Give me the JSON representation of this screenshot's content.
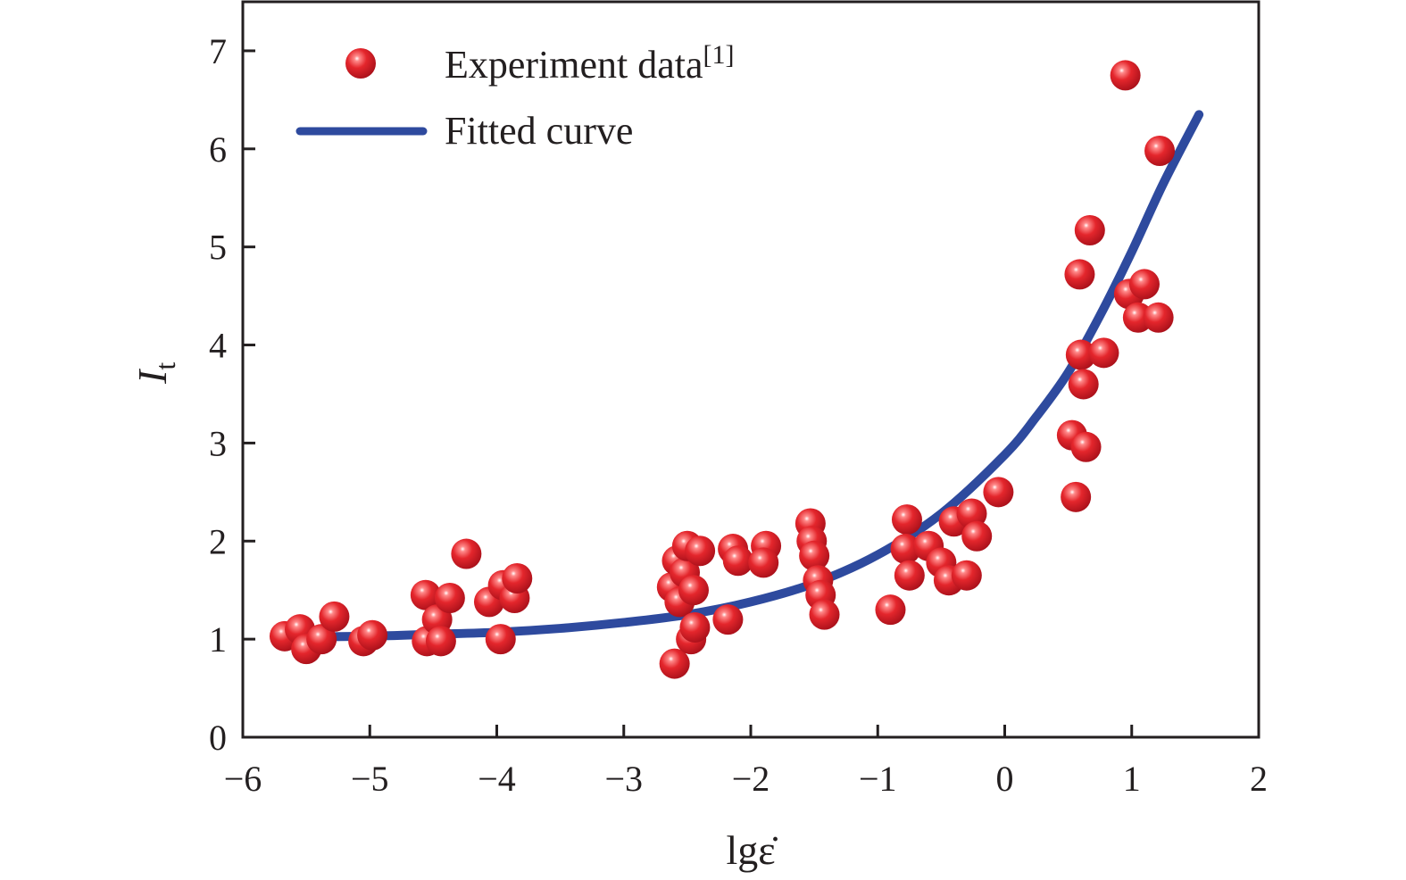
{
  "chart_data": {
    "type": "scatter",
    "xlabel": "lgε̇",
    "ylabel": "I",
    "ylabel_sub": "t",
    "xlim": [
      -6,
      2
    ],
    "ylim": [
      0,
      7.5
    ],
    "xticks": [
      -6,
      -5,
      -4,
      -3,
      -2,
      -1,
      0,
      1,
      2
    ],
    "xtick_labels": [
      "−6",
      "−5",
      "−4",
      "−3",
      "−2",
      "−1",
      "0",
      "1",
      "2"
    ],
    "yticks": [
      0,
      1,
      2,
      3,
      4,
      5,
      6,
      7
    ],
    "ytick_labels": [
      "0",
      "1",
      "2",
      "3",
      "4",
      "5",
      "6",
      "7"
    ],
    "legend": {
      "placement": "top-left",
      "entries": [
        {
          "label": "Experiment data",
          "superscript": "[1]",
          "marker": "sphere"
        },
        {
          "label": "Fitted curve",
          "marker": "line"
        }
      ]
    },
    "colors": {
      "points": "#e4262c",
      "curve": "#2e4a9e",
      "axes": "#231f20"
    },
    "series": [
      {
        "name": "Experiment data",
        "kind": "scatter",
        "points": [
          [
            -5.67,
            1.03
          ],
          [
            -5.55,
            1.1
          ],
          [
            -5.5,
            0.9
          ],
          [
            -5.38,
            1.0
          ],
          [
            -5.28,
            1.23
          ],
          [
            -5.05,
            0.98
          ],
          [
            -4.98,
            1.04
          ],
          [
            -4.56,
            1.45
          ],
          [
            -4.55,
            0.98
          ],
          [
            -4.47,
            1.2
          ],
          [
            -4.44,
            0.98
          ],
          [
            -4.37,
            1.42
          ],
          [
            -4.24,
            1.87
          ],
          [
            -4.06,
            1.38
          ],
          [
            -3.97,
            1.0
          ],
          [
            -3.95,
            1.55
          ],
          [
            -3.86,
            1.42
          ],
          [
            -3.84,
            1.62
          ],
          [
            -2.62,
            1.53
          ],
          [
            -2.58,
            1.8
          ],
          [
            -2.6,
            0.75
          ],
          [
            -2.56,
            1.38
          ],
          [
            -2.52,
            1.68
          ],
          [
            -2.5,
            1.95
          ],
          [
            -2.47,
            1.0
          ],
          [
            -2.45,
            1.5
          ],
          [
            -2.44,
            1.12
          ],
          [
            -2.4,
            1.9
          ],
          [
            -2.18,
            1.2
          ],
          [
            -2.14,
            1.92
          ],
          [
            -2.1,
            1.8
          ],
          [
            -1.88,
            1.95
          ],
          [
            -1.9,
            1.78
          ],
          [
            -1.53,
            2.18
          ],
          [
            -1.52,
            2.0
          ],
          [
            -1.5,
            1.85
          ],
          [
            -1.47,
            1.6
          ],
          [
            -1.45,
            1.45
          ],
          [
            -1.42,
            1.25
          ],
          [
            -0.9,
            1.3
          ],
          [
            -0.77,
            2.22
          ],
          [
            -0.78,
            1.92
          ],
          [
            -0.75,
            1.65
          ],
          [
            -0.6,
            1.95
          ],
          [
            -0.5,
            1.78
          ],
          [
            -0.44,
            1.6
          ],
          [
            -0.4,
            2.2
          ],
          [
            -0.3,
            1.65
          ],
          [
            -0.26,
            2.28
          ],
          [
            -0.22,
            2.05
          ],
          [
            -0.05,
            2.5
          ],
          [
            0.53,
            3.08
          ],
          [
            0.56,
            2.45
          ],
          [
            0.59,
            4.72
          ],
          [
            0.6,
            3.9
          ],
          [
            0.62,
            3.6
          ],
          [
            0.64,
            2.96
          ],
          [
            0.67,
            5.17
          ],
          [
            0.78,
            3.92
          ],
          [
            0.95,
            6.75
          ],
          [
            0.98,
            4.52
          ],
          [
            1.05,
            4.28
          ],
          [
            1.1,
            4.62
          ],
          [
            1.21,
            4.28
          ],
          [
            1.22,
            5.98
          ]
        ]
      },
      {
        "name": "Fitted curve",
        "kind": "line",
        "points": [
          [
            -5.67,
            1.02
          ],
          [
            -5.0,
            1.03
          ],
          [
            -4.5,
            1.05
          ],
          [
            -4.0,
            1.07
          ],
          [
            -3.5,
            1.11
          ],
          [
            -3.0,
            1.17
          ],
          [
            -2.5,
            1.25
          ],
          [
            -2.0,
            1.38
          ],
          [
            -1.5,
            1.57
          ],
          [
            -1.0,
            1.86
          ],
          [
            -0.5,
            2.28
          ],
          [
            0.0,
            2.88
          ],
          [
            0.25,
            3.27
          ],
          [
            0.5,
            3.72
          ],
          [
            0.75,
            4.3
          ],
          [
            1.0,
            4.95
          ],
          [
            1.25,
            5.65
          ],
          [
            1.53,
            6.35
          ]
        ]
      }
    ]
  }
}
